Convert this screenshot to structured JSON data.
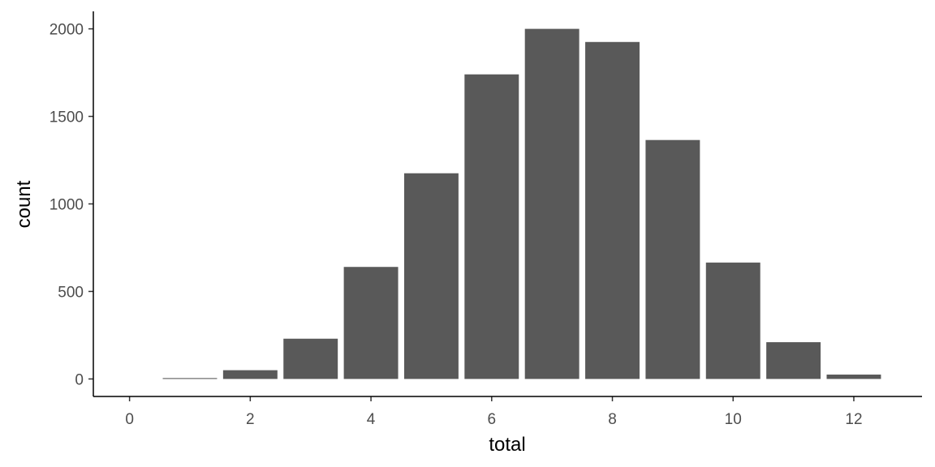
{
  "chart_data": {
    "type": "bar",
    "x_label": "total",
    "y_label": "count",
    "x": [
      1,
      2,
      3,
      4,
      5,
      6,
      7,
      8,
      9,
      10,
      11,
      12
    ],
    "values": [
      5,
      50,
      230,
      640,
      1175,
      1740,
      2000,
      1925,
      1365,
      665,
      210,
      25
    ],
    "color": "#595959",
    "xlim": [
      -0.6,
      13.13
    ],
    "xticks": [
      0,
      2,
      4,
      6,
      8,
      10,
      12
    ],
    "ylim": [
      -100,
      2100
    ],
    "yticks": [
      0,
      500,
      1000,
      1500,
      2000
    ],
    "grid": false
  }
}
